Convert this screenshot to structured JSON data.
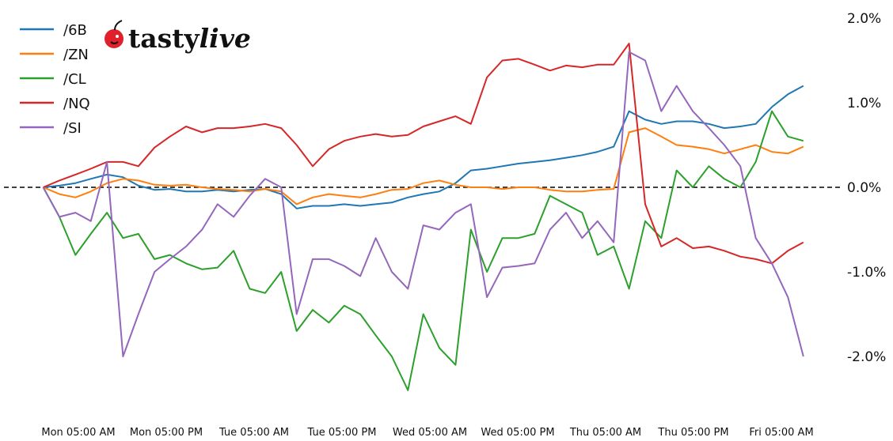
{
  "logo": {
    "brand": "tastylive",
    "part1": "tasty",
    "part2": "live",
    "cherry_color": "#e0202a"
  },
  "chart_data": {
    "type": "line",
    "title": "",
    "xlabel": "",
    "ylabel": "",
    "x_units": "hours since Mon 05:00 AM",
    "x": [
      -4.8,
      -2.6,
      -0.4,
      1.7,
      3.9,
      6.1,
      8.2,
      10.4,
      12.5,
      14.7,
      16.9,
      19.0,
      21.2,
      23.4,
      25.5,
      27.7,
      29.8,
      32.0,
      34.2,
      36.3,
      38.5,
      40.6,
      42.8,
      45.0,
      47.1,
      49.3,
      51.5,
      53.6,
      55.8,
      57.9,
      60.1,
      62.3,
      64.4,
      66.6,
      68.8,
      70.9,
      73.1,
      75.2,
      77.4,
      79.6,
      81.7,
      83.9,
      86.1,
      88.2,
      90.4,
      92.5,
      94.7,
      96.9,
      99.0
    ],
    "xlim": [
      -4.8,
      99.0
    ],
    "x_ticks": [
      0,
      12,
      24,
      36,
      48,
      60,
      72,
      84,
      96
    ],
    "x_tick_labels": [
      "Mon 05:00 AM",
      "Mon 05:00 PM",
      "Tue 05:00 AM",
      "Tue 05:00 PM",
      "Wed 05:00 AM",
      "Wed 05:00 PM",
      "Thu 05:00 AM",
      "Thu 05:00 PM",
      "Fri 05:00 AM"
    ],
    "ylim": [
      -2.6,
      2.0
    ],
    "y_ticks": [
      2,
      1,
      0,
      -1,
      -2
    ],
    "y_tick_labels": [
      "2.0%",
      "1.0%",
      "0.0%",
      "-1.0%",
      "-2.0%"
    ],
    "y_axis_position": "right",
    "reference_line": 0,
    "grid": false,
    "legend_position": "top-left",
    "series": [
      {
        "name": "/6B",
        "color": "#1f77b4",
        "values": [
          0,
          0.02,
          0.05,
          0.1,
          0.15,
          0.12,
          0.02,
          -0.03,
          -0.02,
          -0.05,
          -0.05,
          -0.03,
          -0.05,
          -0.03,
          -0.02,
          -0.08,
          -0.25,
          -0.22,
          -0.22,
          -0.2,
          -0.22,
          -0.2,
          -0.18,
          -0.12,
          -0.08,
          -0.05,
          0.05,
          0.2,
          0.22,
          0.25,
          0.28,
          0.3,
          0.32,
          0.35,
          0.38,
          0.42,
          0.48,
          0.9,
          0.8,
          0.75,
          0.78,
          0.78,
          0.75,
          0.7,
          0.72,
          0.75,
          0.95,
          1.1,
          1.2
        ]
      },
      {
        "name": "/ZN",
        "color": "#ff7f0e",
        "values": [
          0,
          -0.08,
          -0.12,
          -0.05,
          0.05,
          0.1,
          0.08,
          0.03,
          0.02,
          0.03,
          0,
          -0.02,
          -0.03,
          -0.05,
          -0.02,
          -0.05,
          -0.2,
          -0.12,
          -0.08,
          -0.1,
          -0.12,
          -0.08,
          -0.03,
          -0.02,
          0.05,
          0.08,
          0.03,
          0,
          0,
          -0.02,
          0,
          0,
          -0.03,
          -0.05,
          -0.05,
          -0.03,
          -0.02,
          0.65,
          0.7,
          0.6,
          0.5,
          0.48,
          0.45,
          0.4,
          0.45,
          0.5,
          0.42,
          0.4,
          0.48
        ]
      },
      {
        "name": "/CL",
        "color": "#2ca02c",
        "values": [
          0,
          -0.35,
          -0.8,
          -0.55,
          -0.3,
          -0.6,
          -0.55,
          -0.85,
          -0.8,
          -0.9,
          -0.97,
          -0.95,
          -0.75,
          -1.2,
          -1.25,
          -1.0,
          -1.7,
          -1.45,
          -1.6,
          -1.4,
          -1.5,
          -1.75,
          -2.0,
          -2.4,
          -1.5,
          -1.9,
          -2.1,
          -0.5,
          -1.0,
          -0.6,
          -0.6,
          -0.55,
          -0.1,
          -0.2,
          -0.3,
          -0.8,
          -0.7,
          -1.2,
          -0.4,
          -0.6,
          0.2,
          0.0,
          0.25,
          0.1,
          0.0,
          0.3,
          0.9,
          0.6,
          0.55
        ]
      },
      {
        "name": "/NQ",
        "color": "#d62728",
        "values": [
          0,
          0.08,
          0.15,
          0.22,
          0.3,
          0.3,
          0.25,
          0.47,
          0.6,
          0.72,
          0.65,
          0.7,
          0.7,
          0.72,
          0.75,
          0.7,
          0.5,
          0.25,
          0.45,
          0.55,
          0.6,
          0.63,
          0.6,
          0.62,
          0.72,
          0.78,
          0.84,
          0.75,
          1.3,
          1.5,
          1.52,
          1.45,
          1.38,
          1.44,
          1.42,
          1.45,
          1.45,
          1.7,
          -0.2,
          -0.7,
          -0.6,
          -0.72,
          -0.7,
          -0.75,
          -0.82,
          -0.85,
          -0.9,
          -0.75,
          -0.65
        ]
      },
      {
        "name": "/SI",
        "color": "#9467bd",
        "values": [
          0,
          -0.35,
          -0.3,
          -0.4,
          0.3,
          -2.0,
          -1.5,
          -1.0,
          -0.85,
          -0.7,
          -0.5,
          -0.2,
          -0.35,
          -0.1,
          0.1,
          0.0,
          -1.5,
          -0.85,
          -0.85,
          -0.93,
          -1.05,
          -0.6,
          -1.0,
          -1.2,
          -0.45,
          -0.5,
          -0.3,
          -0.2,
          -1.3,
          -0.95,
          -0.93,
          -0.9,
          -0.5,
          -0.3,
          -0.6,
          -0.4,
          -0.65,
          1.6,
          1.5,
          0.9,
          1.2,
          0.9,
          0.7,
          0.5,
          0.25,
          -0.6,
          -0.9,
          -1.3,
          -2.0
        ]
      }
    ]
  }
}
